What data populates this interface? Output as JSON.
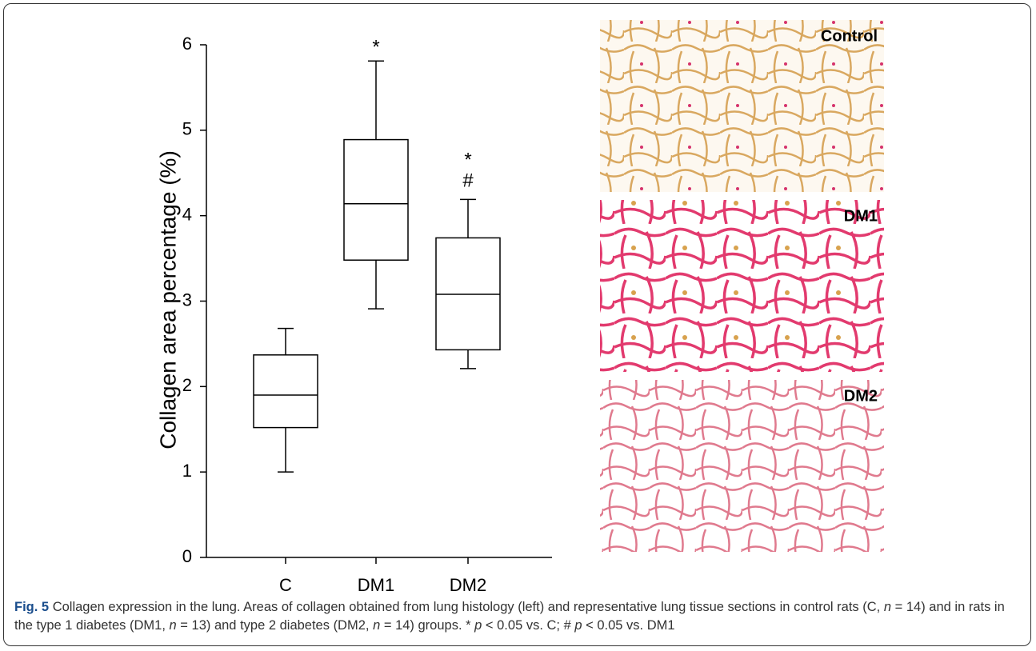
{
  "chart_data": {
    "type": "box",
    "y_label": "Collagen area percentage (%)",
    "categories": [
      "C",
      "DM1",
      "DM2"
    ],
    "boxes": [
      {
        "min": 1.0,
        "q1": 1.52,
        "median": 1.9,
        "q3": 2.37,
        "max": 2.68
      },
      {
        "min": 2.91,
        "q1": 3.48,
        "median": 4.14,
        "q3": 4.89,
        "max": 5.81
      },
      {
        "min": 2.21,
        "q1": 2.43,
        "median": 3.08,
        "q3": 3.74,
        "max": 4.19
      }
    ],
    "annotations": [
      [],
      [
        "*"
      ],
      [
        "*",
        "#"
      ]
    ],
    "ylim": [
      0,
      6
    ],
    "yticks": [
      0,
      1,
      2,
      3,
      4,
      5,
      6
    ],
    "color": "#000000"
  },
  "panels": [
    {
      "label": "Control"
    },
    {
      "label": "DM1"
    },
    {
      "label": "DM2"
    }
  ],
  "caption": {
    "label": "Fig. 5",
    "runs": [
      "Collagen expression in the lung. Areas of collagen obtained from lung histology (left) and representative lung tissue sections in control rats (C, ",
      "n",
      " = 14) and in rats in the type 1 diabetes (DM1, ",
      "n",
      " = 13) and type 2 diabetes (DM2, ",
      "n",
      " = 14) groups. * ",
      "p",
      " < 0.05 vs. C; # ",
      "p",
      " < 0.05 vs. DM1"
    ]
  }
}
